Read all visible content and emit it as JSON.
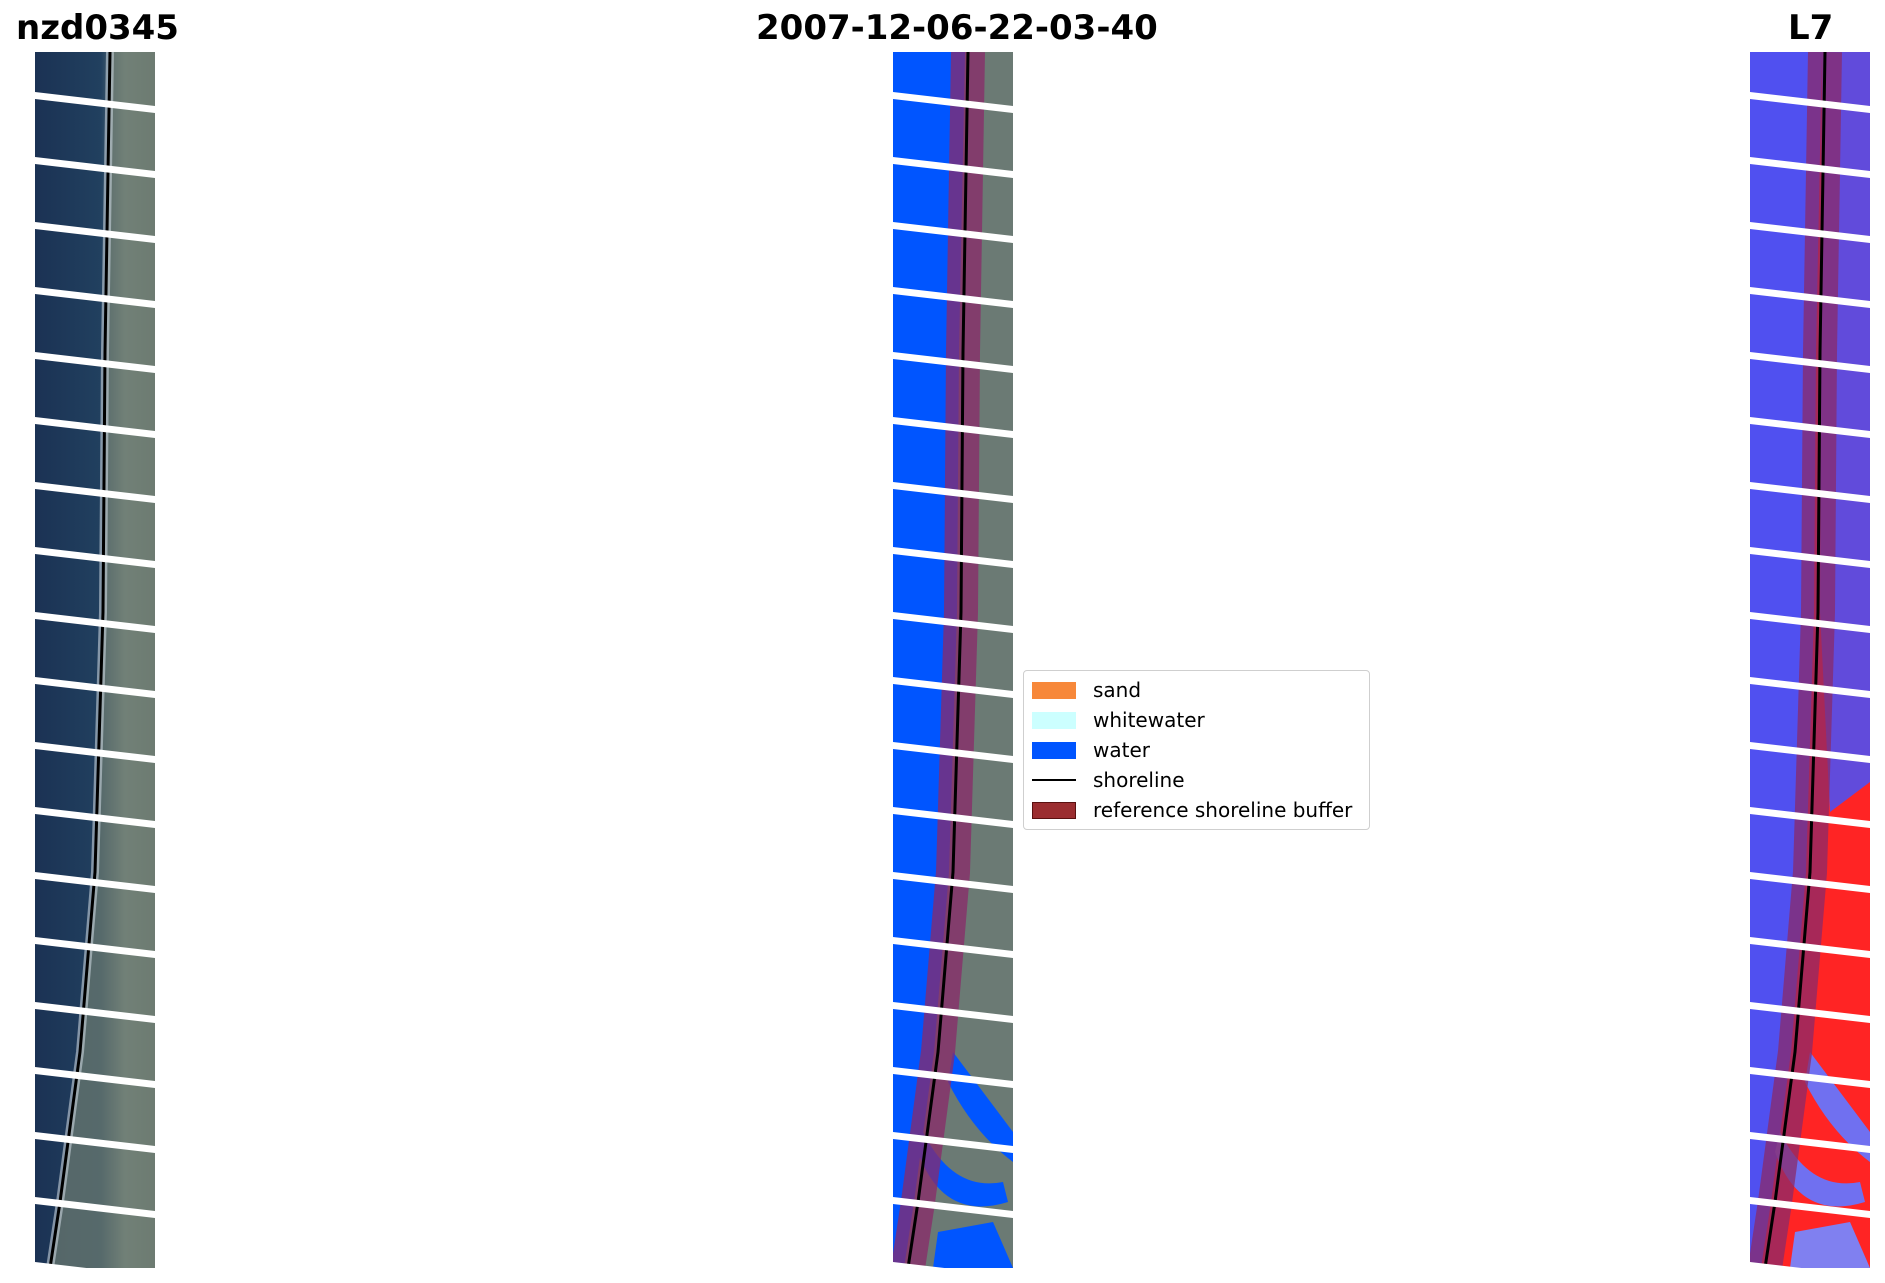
{
  "titles": {
    "left": "nzd0345",
    "center": "2007-12-06-22-03-40",
    "right": "L7"
  },
  "legend": {
    "items": [
      {
        "label": "sand",
        "color": "#f7883a",
        "kind": "patch"
      },
      {
        "label": "whitewater",
        "color": "#ccffff",
        "kind": "patch"
      },
      {
        "label": "water",
        "color": "#0055ff",
        "kind": "patch"
      },
      {
        "label": "shoreline",
        "color": "#000000",
        "kind": "line"
      },
      {
        "label": "reference shoreline buffer",
        "color": "#9b2d30",
        "kind": "patch"
      }
    ]
  },
  "colors": {
    "rgb_water": "#1d3557",
    "rgb_land": "#5e6f68",
    "class_water": "#0055ff",
    "index_water": "#5050f0",
    "index_land": "#ff2020",
    "buffer": "#8a2a6a",
    "shoreline": "#000000"
  }
}
